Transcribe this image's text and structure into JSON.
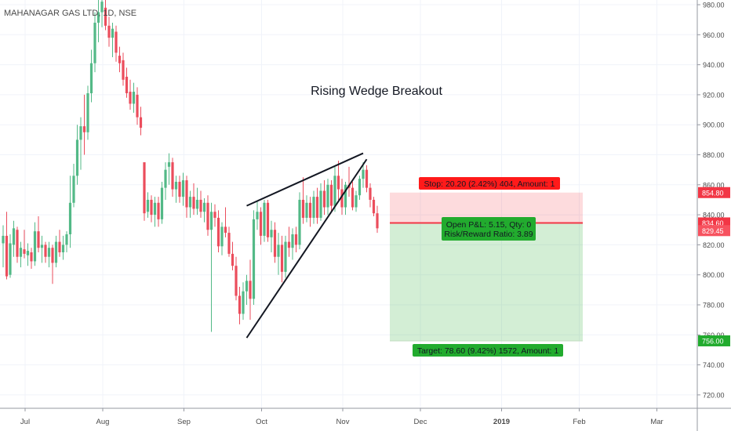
{
  "header": {
    "symbol": "MAHANAGAR GAS LTD, 1D, NSE"
  },
  "annotation": {
    "text": "Rising Wedge Breakout"
  },
  "trade": {
    "stop_label": "Stop: 20.20 (2.42%) 404, Amount: 1",
    "pnl_label": "Open P&L: 5.15, Qty: 0",
    "rr_label": "Risk/Reward Ratio: 3.89",
    "target_label": "Target: 78.60 (9.42%) 1572, Amount: 1",
    "entry": 834.6,
    "stop": 854.8,
    "target": 756.0,
    "current": 829.45
  },
  "price_badges": [
    {
      "label": "854.80",
      "value": 854.8,
      "color": "#f23645"
    },
    {
      "label": "834.60",
      "value": 834.6,
      "color": "#f23645"
    },
    {
      "label": "829.45",
      "value": 829.45,
      "color": "#f7525f"
    },
    {
      "label": "756.00",
      "value": 756.0,
      "color": "#22ab2e"
    }
  ],
  "colors": {
    "up": "#53b987",
    "down": "#eb4d5c",
    "grid": "#f0f3fa",
    "axis_text": "#4a4a4a"
  },
  "chart_data": {
    "type": "candlestick",
    "yaxis": {
      "ticks": [
        "980.00",
        "960.00",
        "940.00",
        "920.00",
        "900.00",
        "880.00",
        "860.00",
        "840.00",
        "820.00",
        "800.00",
        "780.00",
        "760.00",
        "740.00",
        "720.00"
      ],
      "ylim": [
        711,
        985
      ]
    },
    "xaxis": {
      "ticks": [
        "Jul",
        "Aug",
        "Sep",
        "Oct",
        "Nov",
        "Dec",
        "2019",
        "Feb",
        "Mar"
      ],
      "tick_index": [
        0,
        22,
        45,
        67,
        90,
        112,
        135,
        157,
        179
      ]
    },
    "candles": [
      {
        "o": 821,
        "h": 833,
        "l": 805,
        "c": 826
      },
      {
        "o": 826,
        "h": 842,
        "l": 797,
        "c": 799
      },
      {
        "o": 800,
        "h": 827,
        "l": 798,
        "c": 821
      },
      {
        "o": 820,
        "h": 836,
        "l": 812,
        "c": 831
      },
      {
        "o": 830,
        "h": 832,
        "l": 808,
        "c": 812
      },
      {
        "o": 812,
        "h": 822,
        "l": 805,
        "c": 818
      },
      {
        "o": 817,
        "h": 830,
        "l": 811,
        "c": 814
      },
      {
        "o": 813,
        "h": 821,
        "l": 806,
        "c": 816
      },
      {
        "o": 815,
        "h": 818,
        "l": 804,
        "c": 809
      },
      {
        "o": 809,
        "h": 835,
        "l": 806,
        "c": 829
      },
      {
        "o": 829,
        "h": 839,
        "l": 815,
        "c": 818
      },
      {
        "o": 818,
        "h": 826,
        "l": 808,
        "c": 820
      },
      {
        "o": 820,
        "h": 822,
        "l": 808,
        "c": 812
      },
      {
        "o": 812,
        "h": 822,
        "l": 805,
        "c": 818
      },
      {
        "o": 818,
        "h": 820,
        "l": 794,
        "c": 808
      },
      {
        "o": 808,
        "h": 826,
        "l": 805,
        "c": 822
      },
      {
        "o": 822,
        "h": 830,
        "l": 812,
        "c": 815
      },
      {
        "o": 815,
        "h": 826,
        "l": 810,
        "c": 820
      },
      {
        "o": 820,
        "h": 829,
        "l": 815,
        "c": 827
      },
      {
        "o": 827,
        "h": 866,
        "l": 818,
        "c": 848
      },
      {
        "o": 848,
        "h": 874,
        "l": 845,
        "c": 866
      },
      {
        "o": 866,
        "h": 900,
        "l": 860,
        "c": 890
      },
      {
        "o": 890,
        "h": 905,
        "l": 870,
        "c": 899
      },
      {
        "o": 899,
        "h": 920,
        "l": 880,
        "c": 895
      },
      {
        "o": 895,
        "h": 926,
        "l": 890,
        "c": 921
      },
      {
        "o": 921,
        "h": 950,
        "l": 915,
        "c": 941
      },
      {
        "o": 941,
        "h": 975,
        "l": 935,
        "c": 968
      },
      {
        "o": 968,
        "h": 985,
        "l": 955,
        "c": 975
      },
      {
        "o": 975,
        "h": 985,
        "l": 965,
        "c": 982
      },
      {
        "o": 978,
        "h": 985,
        "l": 963,
        "c": 966
      },
      {
        "o": 966,
        "h": 972,
        "l": 952,
        "c": 958
      },
      {
        "o": 958,
        "h": 968,
        "l": 945,
        "c": 964
      },
      {
        "o": 962,
        "h": 966,
        "l": 942,
        "c": 948
      },
      {
        "o": 946,
        "h": 952,
        "l": 935,
        "c": 941
      },
      {
        "o": 943,
        "h": 948,
        "l": 926,
        "c": 930
      },
      {
        "o": 932,
        "h": 938,
        "l": 918,
        "c": 921
      },
      {
        "o": 922,
        "h": 930,
        "l": 910,
        "c": 914
      },
      {
        "o": 914,
        "h": 928,
        "l": 908,
        "c": 922
      },
      {
        "o": 920,
        "h": 925,
        "l": 900,
        "c": 905
      },
      {
        "o": 905,
        "h": 912,
        "l": 893,
        "c": 898
      },
      {
        "o": 875,
        "h": 875,
        "l": 836,
        "c": 841
      },
      {
        "o": 842,
        "h": 855,
        "l": 838,
        "c": 850
      },
      {
        "o": 850,
        "h": 853,
        "l": 835,
        "c": 840
      },
      {
        "o": 840,
        "h": 852,
        "l": 832,
        "c": 848
      },
      {
        "o": 848,
        "h": 852,
        "l": 832,
        "c": 837
      },
      {
        "o": 837,
        "h": 862,
        "l": 834,
        "c": 858
      },
      {
        "o": 858,
        "h": 875,
        "l": 850,
        "c": 870
      },
      {
        "o": 872,
        "h": 881,
        "l": 860,
        "c": 875
      },
      {
        "o": 875,
        "h": 878,
        "l": 852,
        "c": 857
      },
      {
        "o": 857,
        "h": 866,
        "l": 848,
        "c": 862
      },
      {
        "o": 862,
        "h": 866,
        "l": 848,
        "c": 852
      },
      {
        "o": 852,
        "h": 868,
        "l": 846,
        "c": 863
      },
      {
        "o": 863,
        "h": 866,
        "l": 838,
        "c": 845
      },
      {
        "o": 845,
        "h": 856,
        "l": 838,
        "c": 852
      },
      {
        "o": 852,
        "h": 861,
        "l": 840,
        "c": 844
      },
      {
        "o": 844,
        "h": 858,
        "l": 840,
        "c": 850
      },
      {
        "o": 850,
        "h": 856,
        "l": 838,
        "c": 842
      },
      {
        "o": 842,
        "h": 851,
        "l": 835,
        "c": 848
      },
      {
        "o": 848,
        "h": 853,
        "l": 826,
        "c": 830
      },
      {
        "o": 830,
        "h": 848,
        "l": 762,
        "c": 842
      },
      {
        "o": 842,
        "h": 847,
        "l": 832,
        "c": 838
      },
      {
        "o": 838,
        "h": 843,
        "l": 815,
        "c": 819
      },
      {
        "o": 819,
        "h": 835,
        "l": 813,
        "c": 832
      },
      {
        "o": 832,
        "h": 845,
        "l": 825,
        "c": 828
      },
      {
        "o": 828,
        "h": 832,
        "l": 812,
        "c": 814
      },
      {
        "o": 814,
        "h": 822,
        "l": 803,
        "c": 806
      },
      {
        "o": 806,
        "h": 812,
        "l": 783,
        "c": 786
      },
      {
        "o": 786,
        "h": 792,
        "l": 767,
        "c": 774
      },
      {
        "o": 774,
        "h": 795,
        "l": 770,
        "c": 789
      },
      {
        "o": 789,
        "h": 800,
        "l": 780,
        "c": 796
      },
      {
        "o": 796,
        "h": 810,
        "l": 770,
        "c": 784
      },
      {
        "o": 784,
        "h": 843,
        "l": 780,
        "c": 837
      },
      {
        "o": 837,
        "h": 849,
        "l": 830,
        "c": 842
      },
      {
        "o": 842,
        "h": 845,
        "l": 820,
        "c": 826
      },
      {
        "o": 826,
        "h": 850,
        "l": 822,
        "c": 848
      },
      {
        "o": 848,
        "h": 850,
        "l": 822,
        "c": 825
      },
      {
        "o": 825,
        "h": 836,
        "l": 815,
        "c": 830
      },
      {
        "o": 830,
        "h": 835,
        "l": 808,
        "c": 812
      },
      {
        "o": 812,
        "h": 828,
        "l": 800,
        "c": 820
      },
      {
        "o": 820,
        "h": 826,
        "l": 795,
        "c": 802
      },
      {
        "o": 802,
        "h": 826,
        "l": 798,
        "c": 822
      },
      {
        "o": 822,
        "h": 832,
        "l": 812,
        "c": 818
      },
      {
        "o": 818,
        "h": 831,
        "l": 810,
        "c": 827
      },
      {
        "o": 827,
        "h": 832,
        "l": 815,
        "c": 820
      },
      {
        "o": 820,
        "h": 855,
        "l": 817,
        "c": 850
      },
      {
        "o": 850,
        "h": 865,
        "l": 834,
        "c": 838
      },
      {
        "o": 838,
        "h": 853,
        "l": 835,
        "c": 848
      },
      {
        "o": 848,
        "h": 852,
        "l": 832,
        "c": 838
      },
      {
        "o": 838,
        "h": 856,
        "l": 834,
        "c": 852
      },
      {
        "o": 852,
        "h": 858,
        "l": 834,
        "c": 838
      },
      {
        "o": 838,
        "h": 861,
        "l": 836,
        "c": 856
      },
      {
        "o": 856,
        "h": 863,
        "l": 840,
        "c": 845
      },
      {
        "o": 845,
        "h": 864,
        "l": 840,
        "c": 860
      },
      {
        "o": 860,
        "h": 863,
        "l": 842,
        "c": 846
      },
      {
        "o": 846,
        "h": 872,
        "l": 842,
        "c": 866
      },
      {
        "o": 866,
        "h": 876,
        "l": 850,
        "c": 857
      },
      {
        "o": 857,
        "h": 864,
        "l": 840,
        "c": 845
      },
      {
        "o": 845,
        "h": 862,
        "l": 840,
        "c": 860
      },
      {
        "o": 860,
        "h": 872,
        "l": 852,
        "c": 858
      },
      {
        "o": 858,
        "h": 862,
        "l": 843,
        "c": 845
      },
      {
        "o": 845,
        "h": 856,
        "l": 842,
        "c": 853
      },
      {
        "o": 853,
        "h": 866,
        "l": 850,
        "c": 864
      },
      {
        "o": 864,
        "h": 875,
        "l": 858,
        "c": 870
      },
      {
        "o": 870,
        "h": 873,
        "l": 855,
        "c": 858
      },
      {
        "o": 858,
        "h": 861,
        "l": 845,
        "c": 850
      },
      {
        "o": 850,
        "h": 852,
        "l": 839,
        "c": 841
      },
      {
        "o": 841,
        "h": 846,
        "l": 828,
        "c": 831
      }
    ],
    "drawings": {
      "wedge_upper": [
        [
          69,
          846
        ],
        [
          102,
          881
        ]
      ],
      "wedge_lower": [
        [
          69,
          758
        ],
        [
          103,
          877
        ]
      ]
    }
  }
}
